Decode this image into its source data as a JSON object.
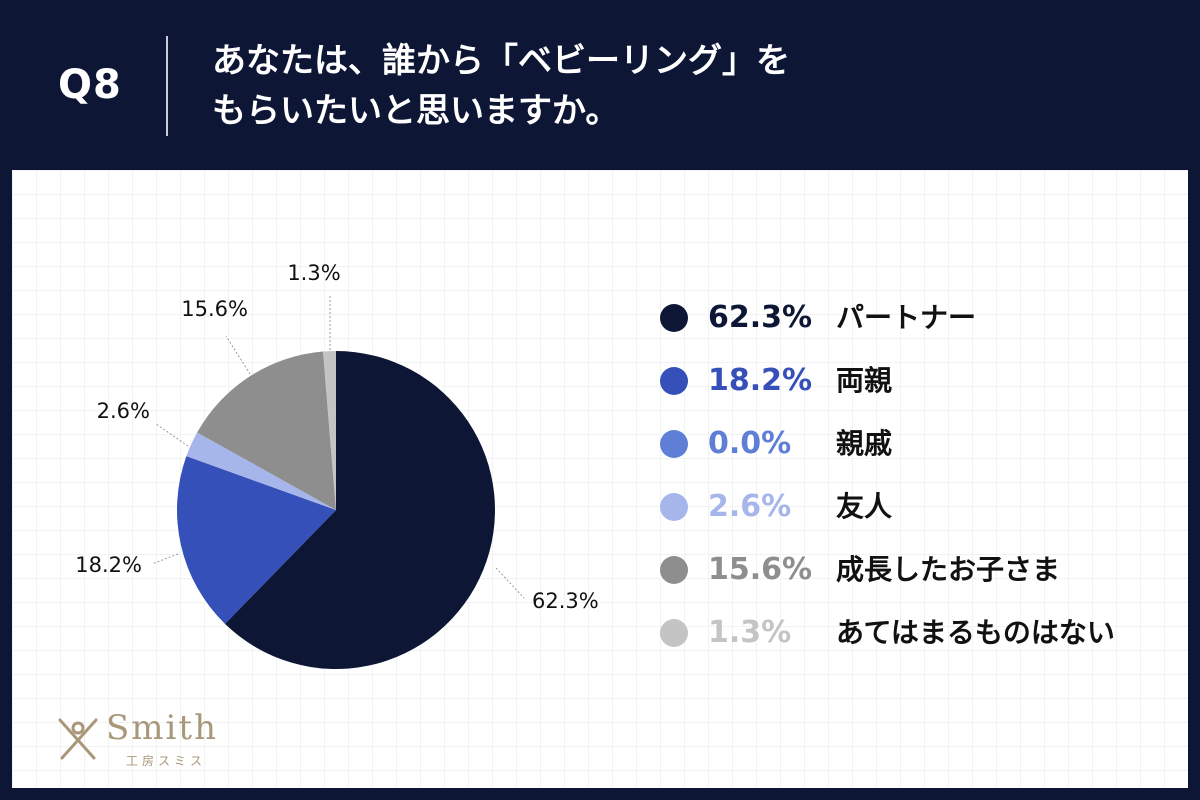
{
  "header": {
    "qnum": "Q8",
    "question_line1": "あなたは、誰から「ベビーリング」を",
    "question_line2": "もらいたいと思いますか。"
  },
  "chart_data": {
    "type": "pie",
    "title": "",
    "slices": [
      {
        "label": "パートナー",
        "value": 62.3,
        "display": "62.3%",
        "color": "#0e1635",
        "legend_text_color": "#0e1635"
      },
      {
        "label": "両親",
        "value": 18.2,
        "display": "18.2%",
        "color": "#3550b8",
        "legend_text_color": "#3550b8"
      },
      {
        "label": "親戚",
        "value": 0.0,
        "display": "0.0%",
        "color": "#5f7ed6",
        "legend_text_color": "#5f7ed6"
      },
      {
        "label": "友人",
        "value": 2.6,
        "display": "2.6%",
        "color": "#a7b6ea",
        "legend_text_color": "#a7b6ea"
      },
      {
        "label": "成長したお子さま",
        "value": 15.6,
        "display": "15.6%",
        "color": "#8e8e8e",
        "legend_text_color": "#8e8e8e"
      },
      {
        "label": "あてはまるものはない",
        "value": 1.3,
        "display": "1.3%",
        "color": "#c4c4c4",
        "legend_text_color": "#c4c4c4"
      }
    ],
    "legend_position": "right",
    "start_angle": "12 o'clock, clockwise"
  },
  "logo": {
    "word": "Smith",
    "sub": "工房スミス"
  }
}
